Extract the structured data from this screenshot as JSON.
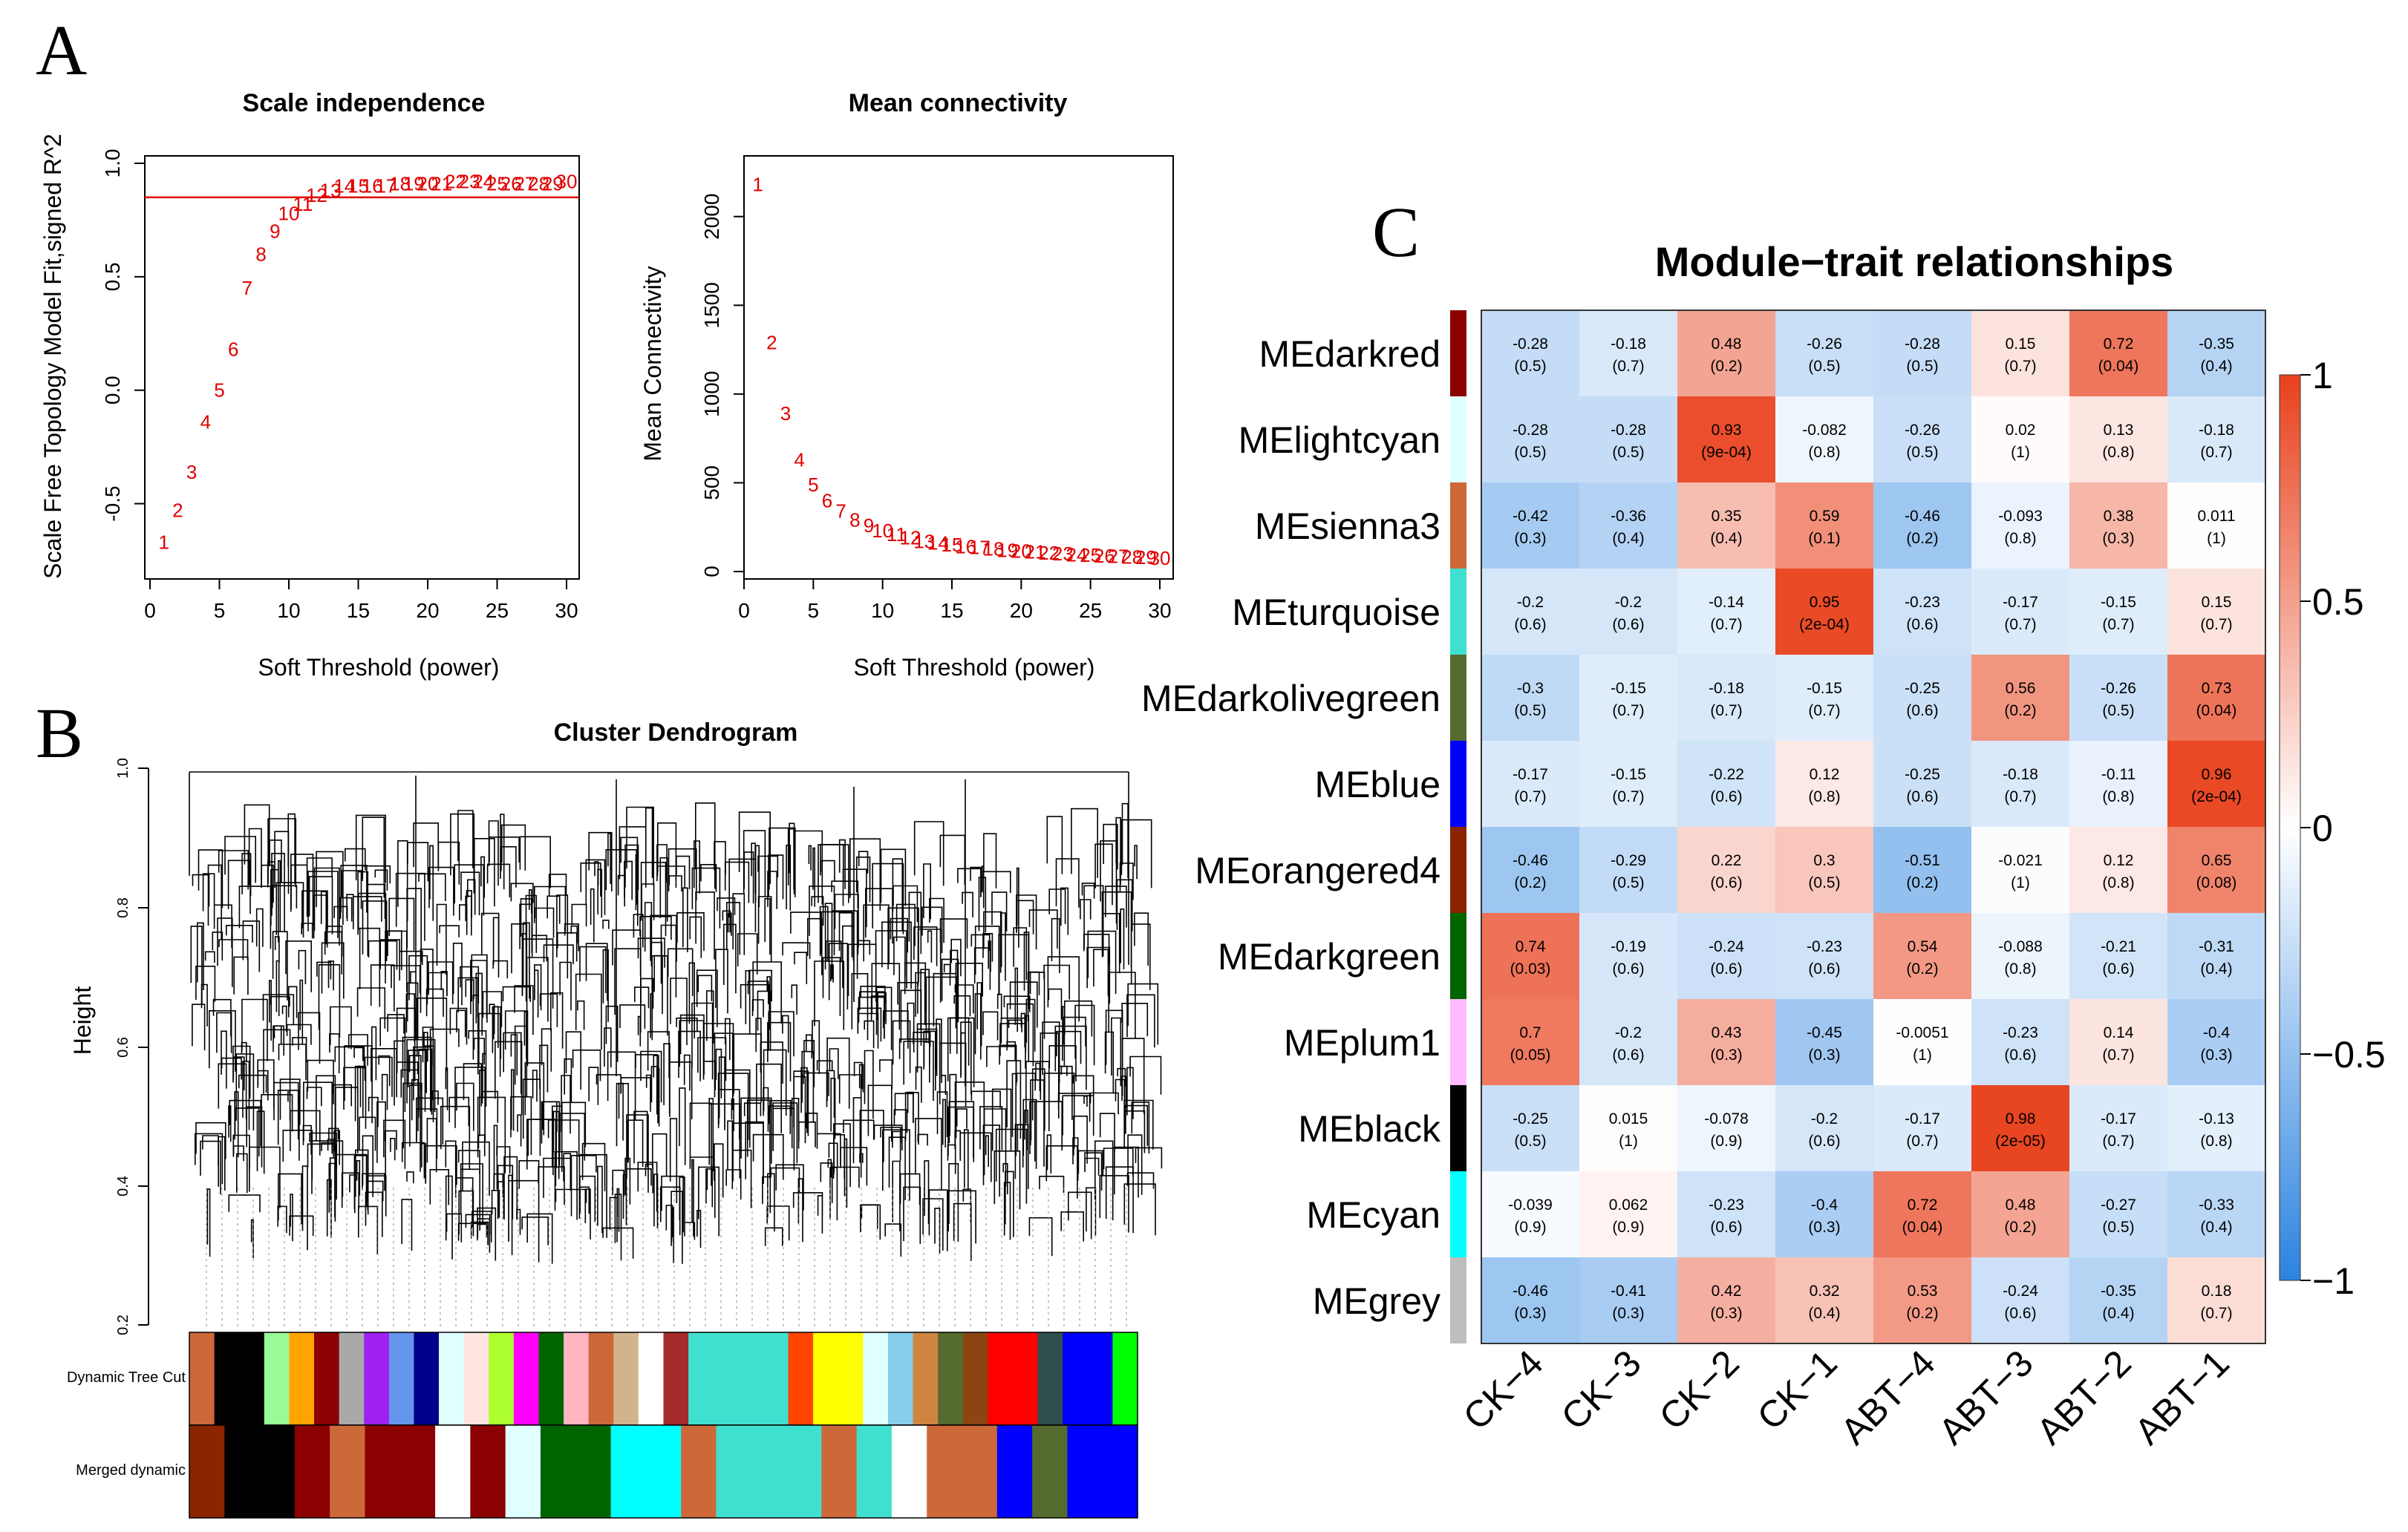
{
  "panels": {
    "a": "A",
    "b": "B",
    "c": "C"
  },
  "chart_data": [
    {
      "type": "scatter",
      "title": "Scale independence",
      "xlabel": "Soft Threshold (power)",
      "ylabel": "Scale Free Topology Model Fit,signed R^2",
      "xlim": [
        0,
        30
      ],
      "ylim": [
        -0.75,
        1.0
      ],
      "xticks": [
        0,
        5,
        10,
        15,
        20,
        25,
        30
      ],
      "yticks": [
        -0.5,
        0.0,
        0.5,
        1.0
      ],
      "ytick_labels": [
        "-0.5",
        "0.0",
        "0.5",
        "1.0"
      ],
      "hline": 0.85,
      "points_as_labels": true,
      "x": [
        1,
        2,
        3,
        4,
        5,
        6,
        7,
        8,
        9,
        10,
        11,
        12,
        13,
        14,
        15,
        16,
        17,
        18,
        19,
        20,
        21,
        22,
        23,
        24,
        25,
        26,
        27,
        28,
        29,
        30
      ],
      "y": [
        -0.67,
        -0.53,
        -0.36,
        -0.14,
        0.0,
        0.18,
        0.45,
        0.6,
        0.7,
        0.78,
        0.82,
        0.86,
        0.88,
        0.9,
        0.9,
        0.9,
        0.9,
        0.91,
        0.91,
        0.91,
        0.91,
        0.92,
        0.92,
        0.92,
        0.91,
        0.91,
        0.91,
        0.91,
        0.91,
        0.92
      ]
    },
    {
      "type": "scatter",
      "title": "Mean connectivity",
      "xlabel": "Soft Threshold (power)",
      "ylabel": "Mean Connectivity",
      "xlim": [
        0,
        30
      ],
      "ylim": [
        0,
        2300
      ],
      "xticks": [
        0,
        5,
        10,
        15,
        20,
        25,
        30
      ],
      "yticks": [
        0,
        500,
        1000,
        1500,
        2000
      ],
      "points_as_labels": true,
      "x": [
        1,
        2,
        3,
        4,
        5,
        6,
        7,
        8,
        9,
        10,
        11,
        12,
        13,
        14,
        15,
        16,
        17,
        18,
        19,
        20,
        21,
        22,
        23,
        24,
        25,
        26,
        27,
        28,
        29,
        30
      ],
      "y": [
        2180,
        1290,
        890,
        630,
        490,
        400,
        340,
        290,
        260,
        230,
        210,
        190,
        170,
        160,
        150,
        140,
        135,
        128,
        120,
        115,
        110,
        105,
        100,
        95,
        92,
        88,
        85,
        82,
        80,
        76
      ]
    },
    {
      "type": "heatmap",
      "title": "Module−trait relationships",
      "columns": [
        "CK−4",
        "CK−3",
        "CK−2",
        "CK−1",
        "ABT−4",
        "ABT−3",
        "ABT−2",
        "ABT−1"
      ],
      "rows": [
        {
          "name": "MEdarkred",
          "color": "#8B0000",
          "values": [
            -0.28,
            -0.18,
            0.48,
            -0.26,
            -0.28,
            0.15,
            0.72,
            -0.35
          ],
          "labels": [
            "-0.28",
            "-0.18",
            "0.48",
            "-0.26",
            "-0.28",
            "0.15",
            "0.72",
            "-0.35"
          ],
          "p": [
            "(0.5)",
            "(0.7)",
            "(0.2)",
            "(0.5)",
            "(0.5)",
            "(0.7)",
            "(0.04)",
            "(0.4)"
          ]
        },
        {
          "name": "MElightcyan",
          "color": "#E0FFFF",
          "values": [
            -0.28,
            -0.28,
            0.93,
            -0.082,
            -0.26,
            0.02,
            0.13,
            -0.18
          ],
          "labels": [
            "-0.28",
            "-0.28",
            "0.93",
            "-0.082",
            "-0.26",
            "0.02",
            "0.13",
            "-0.18"
          ],
          "p": [
            "(0.5)",
            "(0.5)",
            "(9e-04)",
            "(0.8)",
            "(0.5)",
            "(1)",
            "(0.8)",
            "(0.7)"
          ]
        },
        {
          "name": "MEsienna3",
          "color": "#CD6839",
          "values": [
            -0.42,
            -0.36,
            0.35,
            0.59,
            -0.46,
            -0.093,
            0.38,
            0.011
          ],
          "labels": [
            "-0.42",
            "-0.36",
            "0.35",
            "0.59",
            "-0.46",
            "-0.093",
            "0.38",
            "0.011"
          ],
          "p": [
            "(0.3)",
            "(0.4)",
            "(0.4)",
            "(0.1)",
            "(0.2)",
            "(0.8)",
            "(0.3)",
            "(1)"
          ]
        },
        {
          "name": "MEturquoise",
          "color": "#40E0D0",
          "values": [
            -0.2,
            -0.2,
            -0.14,
            0.95,
            -0.23,
            -0.17,
            -0.15,
            0.15
          ],
          "labels": [
            "-0.2",
            "-0.2",
            "-0.14",
            "0.95",
            "-0.23",
            "-0.17",
            "-0.15",
            "0.15"
          ],
          "p": [
            "(0.6)",
            "(0.6)",
            "(0.7)",
            "(2e-04)",
            "(0.6)",
            "(0.7)",
            "(0.7)",
            "(0.7)"
          ]
        },
        {
          "name": "MEdarkolivegreen",
          "color": "#556B2F",
          "values": [
            -0.3,
            -0.15,
            -0.18,
            -0.15,
            -0.25,
            0.56,
            -0.26,
            0.73
          ],
          "labels": [
            "-0.3",
            "-0.15",
            "-0.18",
            "-0.15",
            "-0.25",
            "0.56",
            "-0.26",
            "0.73"
          ],
          "p": [
            "(0.5)",
            "(0.7)",
            "(0.7)",
            "(0.7)",
            "(0.6)",
            "(0.2)",
            "(0.5)",
            "(0.04)"
          ]
        },
        {
          "name": "MEblue",
          "color": "#0000FF",
          "values": [
            -0.17,
            -0.15,
            -0.22,
            0.12,
            -0.25,
            -0.18,
            -0.11,
            0.96
          ],
          "labels": [
            "-0.17",
            "-0.15",
            "-0.22",
            "0.12",
            "-0.25",
            "-0.18",
            "-0.11",
            "0.96"
          ],
          "p": [
            "(0.7)",
            "(0.7)",
            "(0.6)",
            "(0.8)",
            "(0.6)",
            "(0.7)",
            "(0.8)",
            "(2e-04)"
          ]
        },
        {
          "name": "MEorangered4",
          "color": "#8B2500",
          "values": [
            -0.46,
            -0.29,
            0.22,
            0.3,
            -0.51,
            -0.021,
            0.12,
            0.65
          ],
          "labels": [
            "-0.46",
            "-0.29",
            "0.22",
            "0.3",
            "-0.51",
            "-0.021",
            "0.12",
            "0.65"
          ],
          "p": [
            "(0.2)",
            "(0.5)",
            "(0.6)",
            "(0.5)",
            "(0.2)",
            "(1)",
            "(0.8)",
            "(0.08)"
          ]
        },
        {
          "name": "MEdarkgreen",
          "color": "#006400",
          "values": [
            0.74,
            -0.19,
            -0.24,
            -0.23,
            0.54,
            -0.088,
            -0.21,
            -0.31
          ],
          "labels": [
            "0.74",
            "-0.19",
            "-0.24",
            "-0.23",
            "0.54",
            "-0.088",
            "-0.21",
            "-0.31"
          ],
          "p": [
            "(0.03)",
            "(0.6)",
            "(0.6)",
            "(0.6)",
            "(0.2)",
            "(0.8)",
            "(0.6)",
            "(0.4)"
          ]
        },
        {
          "name": "MEplum1",
          "color": "#FFBBFF",
          "values": [
            0.7,
            -0.2,
            0.43,
            -0.45,
            -0.0051,
            -0.23,
            0.14,
            -0.4
          ],
          "labels": [
            "0.7",
            "-0.2",
            "0.43",
            "-0.45",
            "-0.0051",
            "-0.23",
            "0.14",
            "-0.4"
          ],
          "p": [
            "(0.05)",
            "(0.6)",
            "(0.3)",
            "(0.3)",
            "(1)",
            "(0.6)",
            "(0.7)",
            "(0.3)"
          ]
        },
        {
          "name": "MEblack",
          "color": "#000000",
          "values": [
            -0.25,
            0.015,
            -0.078,
            -0.2,
            -0.17,
            0.98,
            -0.17,
            -0.13
          ],
          "labels": [
            "-0.25",
            "0.015",
            "-0.078",
            "-0.2",
            "-0.17",
            "0.98",
            "-0.17",
            "-0.13"
          ],
          "p": [
            "(0.5)",
            "(1)",
            "(0.9)",
            "(0.6)",
            "(0.7)",
            "(2e-05)",
            "(0.7)",
            "(0.8)"
          ]
        },
        {
          "name": "MEcyan",
          "color": "#00FFFF",
          "values": [
            -0.039,
            0.062,
            -0.23,
            -0.4,
            0.72,
            0.48,
            -0.27,
            -0.33
          ],
          "labels": [
            "-0.039",
            "0.062",
            "-0.23",
            "-0.4",
            "0.72",
            "0.48",
            "-0.27",
            "-0.33"
          ],
          "p": [
            "(0.9)",
            "(0.9)",
            "(0.6)",
            "(0.3)",
            "(0.04)",
            "(0.2)",
            "(0.5)",
            "(0.4)"
          ]
        },
        {
          "name": "MEgrey",
          "color": "#BEBEBE",
          "values": [
            -0.46,
            -0.41,
            0.42,
            0.32,
            0.53,
            -0.24,
            -0.35,
            0.18
          ],
          "labels": [
            "-0.46",
            "-0.41",
            "0.42",
            "0.32",
            "0.53",
            "-0.24",
            "-0.35",
            "0.18"
          ],
          "p": [
            "(0.3)",
            "(0.3)",
            "(0.3)",
            "(0.4)",
            "(0.2)",
            "(0.6)",
            "(0.4)",
            "(0.7)"
          ]
        }
      ],
      "colorbar": {
        "min": -1,
        "max": 1,
        "ticks": [
          1,
          0.5,
          0,
          -0.5,
          -1
        ],
        "tick_labels": [
          "1",
          "0.5",
          "0",
          "−0.5",
          "−1"
        ],
        "low_color": "#2B83E0",
        "mid_color": "#FFFFFF",
        "high_color": "#E8411C"
      }
    }
  ],
  "dendrogram": {
    "title": "Cluster Dendrogram",
    "ylabel": "Height",
    "yticks": [
      "1.0",
      "0.8",
      "0.6",
      "0.4",
      "0.2"
    ],
    "track_labels": [
      "Dynamic Tree Cut",
      "Merged dynamic"
    ],
    "dynamic_colors": [
      "#CD6839",
      "#000000",
      "#000000",
      "#98FB98",
      "#FFA500",
      "#8B0000",
      "#A9A9A9",
      "#A020F0",
      "#6495ED",
      "#00008B",
      "#E0FFFF",
      "#FFE4E1",
      "#ADFF2F",
      "#FF00FF",
      "#006400",
      "#FFB6C1",
      "#CD6839",
      "#D2B48C",
      "#FFFFFF",
      "#A52A2A",
      "#40E0D0",
      "#40E0D0",
      "#40E0D0",
      "#40E0D0",
      "#FF4500",
      "#FFFF00",
      "#FFFF00",
      "#E0FFFF",
      "#87CEEB",
      "#CD853F",
      "#556B2F",
      "#8B4513",
      "#FF0000",
      "#FF0000",
      "#2F4F4F",
      "#0000FF",
      "#0000FF",
      "#00FF00"
    ],
    "merged_colors": [
      "#8B2500",
      "#000000",
      "#000000",
      "#8B0000",
      "#CD6839",
      "#8B0000",
      "#8B0000",
      "#FFFFFF",
      "#8B0000",
      "#E0FFFF",
      "#006400",
      "#006400",
      "#00FFFF",
      "#00FFFF",
      "#CD6839",
      "#40E0D0",
      "#40E0D0",
      "#40E0D0",
      "#CD6839",
      "#40E0D0",
      "#FFFFFF",
      "#CD6839",
      "#CD6839",
      "#0000FF",
      "#556B2F",
      "#0000FF",
      "#0000FF"
    ]
  }
}
